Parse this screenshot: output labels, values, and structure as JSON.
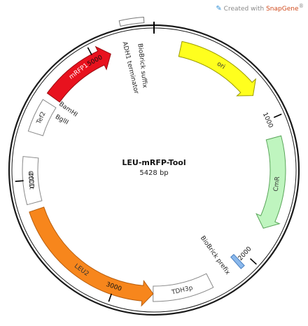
{
  "credit": {
    "prefix": "Created with ",
    "brand": "SnapGene",
    "mark": "®"
  },
  "plasmid": {
    "name": "LEU-mRFP-Tool",
    "size_label": "5428 bp",
    "length": 5428
  },
  "ticks": [
    {
      "bp": 1000,
      "label": "1000"
    },
    {
      "bp": 2000,
      "label": "2000"
    },
    {
      "bp": 3000,
      "label": "3000"
    },
    {
      "bp": 4000,
      "label": "4000"
    },
    {
      "bp": 5000,
      "label": "5000"
    }
  ],
  "features": [
    {
      "id": "ori",
      "label": "ori",
      "start": 185,
      "end": 800,
      "dir": 1,
      "color": "#ffff1e",
      "stroke": "#9a9a00",
      "arrow": true,
      "label_color": "#333333"
    },
    {
      "id": "cmr",
      "label": "CmR",
      "start": 1130,
      "end": 1780,
      "dir": 1,
      "color": "#bff5bf",
      "stroke": "#5aa55a",
      "arrow": true,
      "label_color": "#333333"
    },
    {
      "id": "biobrick-prefix-block",
      "label": "",
      "start": 2060,
      "end": 2090,
      "dir": 0,
      "color": "#8ab8ec",
      "stroke": "#4a7fbf",
      "arrow": false
    },
    {
      "id": "tdh3p",
      "label": "TDH3p",
      "start": 2310,
      "end": 2720,
      "dir": 0,
      "color": "#ffffff",
      "stroke": "#888888",
      "arrow": false,
      "label_color": "#333333"
    },
    {
      "id": "leu2",
      "label": "LEU2",
      "start": 2720,
      "end": 3790,
      "dir": -1,
      "color": "#f7861c",
      "stroke": "#b85e0e",
      "arrow": true,
      "label_color": "#333333"
    },
    {
      "id": "cyc1t",
      "label": "CYC1t",
      "start": 3840,
      "end": 4160,
      "dir": 0,
      "color": "#ffffff",
      "stroke": "#888888",
      "arrow": false,
      "label_color": "#333333"
    },
    {
      "id": "tef2",
      "label": "Tef2",
      "start": 4330,
      "end": 4560,
      "dir": 0,
      "color": "#ffffff",
      "stroke": "#888888",
      "arrow": false,
      "label_color": "#333333"
    },
    {
      "id": "mrfp1",
      "label": "mRFP1",
      "start": 4610,
      "end": 5120,
      "dir": 1,
      "color": "#e8121e",
      "stroke": "#9a0a10",
      "arrow": true,
      "label_color": "#ffffff"
    }
  ],
  "outer_features": [
    {
      "id": "adh1-terminator",
      "start": 5230,
      "end": 5370
    }
  ],
  "site_labels": [
    {
      "id": "adh1-terminator-label",
      "text": "ADH1 terminator",
      "bp": 5230,
      "leader": false
    },
    {
      "id": "biobrick-suffix-label",
      "text": "BioBrick suffix",
      "bp": 5330,
      "leader": true
    },
    {
      "id": "biobrick-prefix-label",
      "text": "BioBrick prefix",
      "bp": 2180,
      "leader": false
    },
    {
      "id": "bamhi-label",
      "text": "BamHI",
      "bp": 4600,
      "leader": false
    },
    {
      "id": "bglii-label",
      "text": "BglII",
      "bp": 4500,
      "leader": false
    }
  ]
}
